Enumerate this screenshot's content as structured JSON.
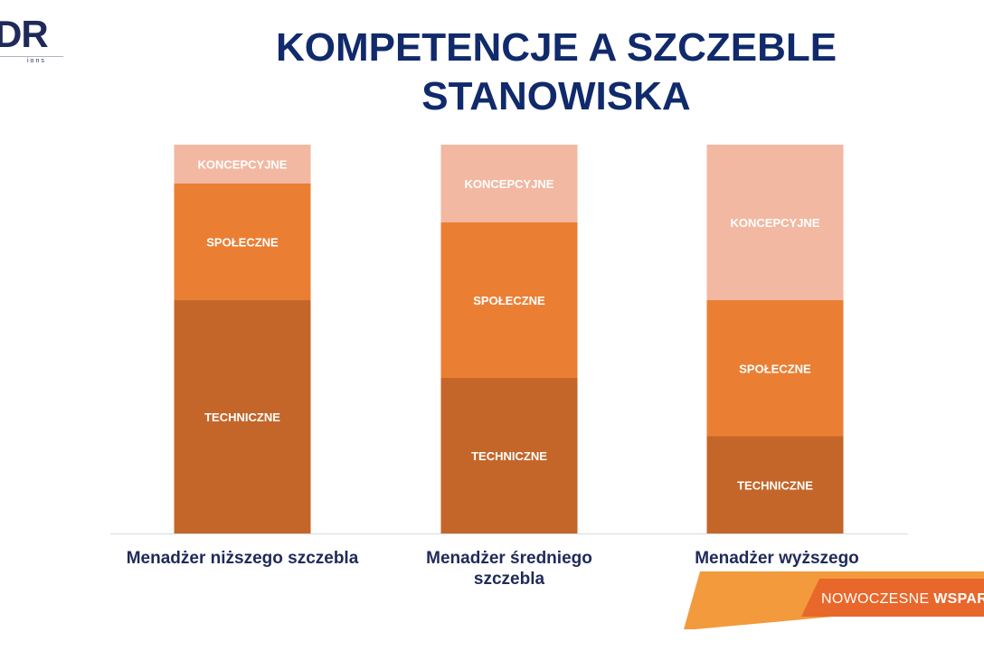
{
  "logo": {
    "text": "DR",
    "subtext": "ions"
  },
  "title": "KOMPETENCJE A SZCZEBLE STANOWISKA",
  "banner": {
    "text_regular": "NOWOCZESNE",
    "text_bold": "WSPAR"
  },
  "colors": {
    "title": "#102a6b",
    "koncepcyjne": "#f2b8a2",
    "spoleczne": "#ea7f34",
    "techniczne": "#c4662a",
    "banner_dark": "#e8672a",
    "banner_light": "#f29a3c"
  },
  "chart_data": {
    "type": "bar",
    "stacked": true,
    "categories": [
      "Menadżer niższego szczebla",
      "Menadżer średniego szczebla",
      "Menadżer wyższego szczebla"
    ],
    "series": [
      {
        "name": "TECHNICZNE",
        "values": [
          60,
          40,
          25
        ]
      },
      {
        "name": "SPOŁECZNE",
        "values": [
          30,
          40,
          35
        ]
      },
      {
        "name": "KONCEPCYJNE",
        "values": [
          10,
          20,
          40
        ]
      }
    ],
    "ylim": [
      0,
      100
    ]
  }
}
